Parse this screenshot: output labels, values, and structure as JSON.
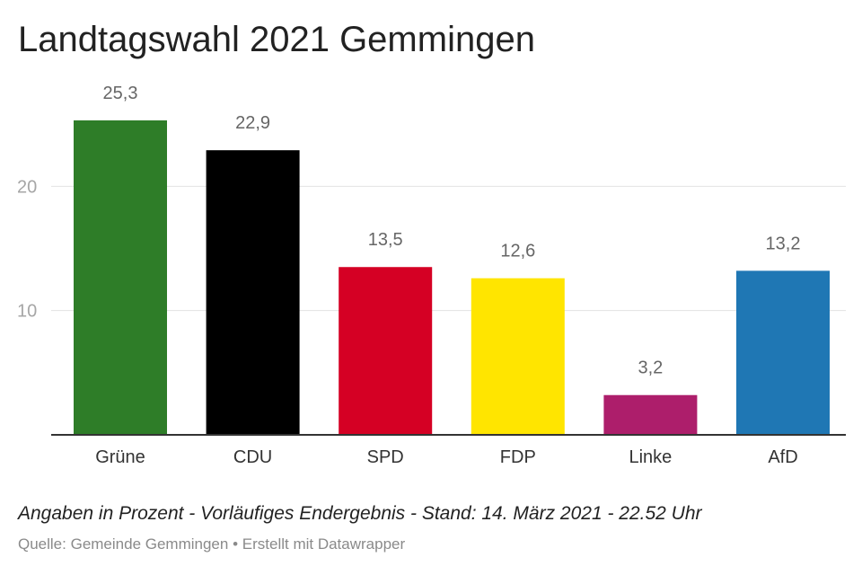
{
  "title": "Landtagswahl 2021 Gemmingen",
  "notes": "Angaben in Prozent - Vorläufiges Endergebnis - Stand: 14. März 2021 - 22.52 Uhr",
  "source_prefix": "Quelle: ",
  "source_name": "Gemeinde Gemmingen",
  "separator": " • ",
  "credit": "Erstellt mit Datawrapper",
  "chart_data": {
    "type": "bar",
    "title": "Landtagswahl 2021 Gemmingen",
    "xlabel": "",
    "ylabel": "",
    "categories": [
      "Grüne",
      "CDU",
      "SPD",
      "FDP",
      "Linke",
      "AfD"
    ],
    "values": [
      25.3,
      22.9,
      13.5,
      12.6,
      3.2,
      13.2
    ],
    "value_labels": [
      "25,3",
      "22,9",
      "13,5",
      "12,6",
      "3,2",
      "13,2"
    ],
    "colors": [
      "#2e7d28",
      "#000000",
      "#d50024",
      "#ffe500",
      "#ad1e6b",
      "#1f77b4"
    ],
    "yticks": [
      10,
      20
    ],
    "ylim": [
      0,
      25.3
    ],
    "grid": true,
    "legend": "none"
  }
}
